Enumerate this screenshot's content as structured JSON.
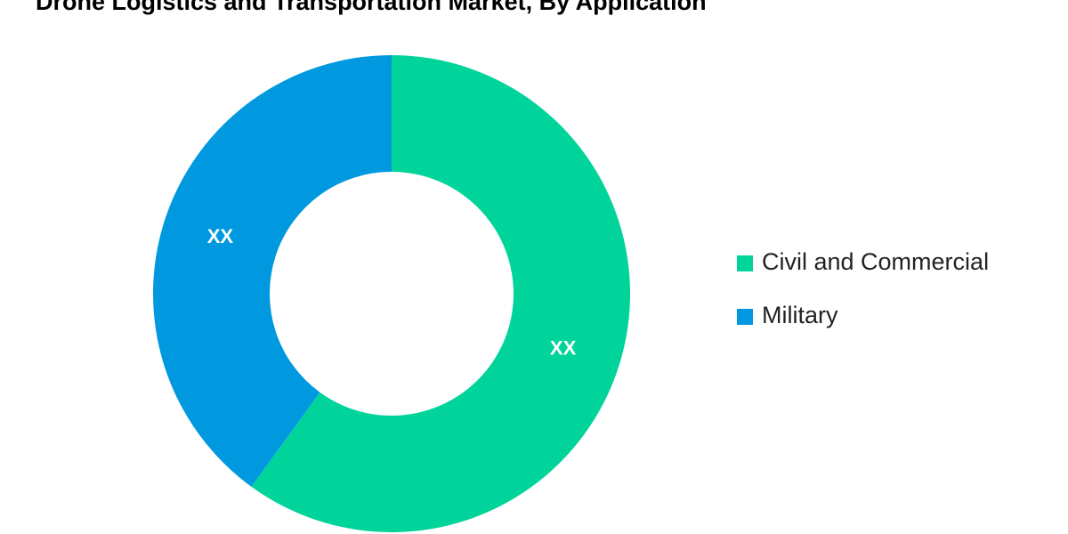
{
  "chart_data": {
    "type": "donut",
    "title": "Drone Logistics and Transportation Market, By Application",
    "categories": [
      "Civil and Commercial",
      "Military"
    ],
    "values": [
      60,
      40
    ],
    "value_labels": [
      "XX",
      "XX"
    ],
    "colors": [
      "#00d49a",
      "#0099e0"
    ],
    "legend": "right"
  }
}
